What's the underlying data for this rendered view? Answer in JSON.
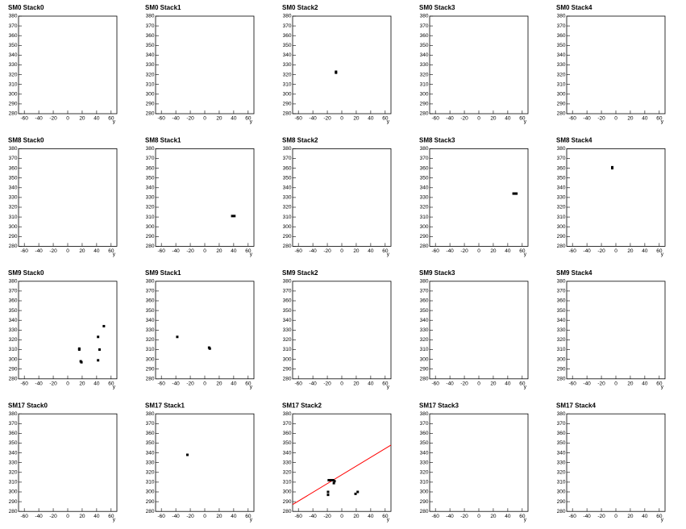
{
  "chart_data": [
    {
      "type": "scatter",
      "title": "SM0 Stack0",
      "xlabel": "y",
      "x": [],
      "y": [],
      "color": "#000000",
      "xlim": [
        -68,
        68
      ],
      "ylim": [
        280,
        380
      ],
      "xticks": [
        -60,
        -40,
        -20,
        0,
        20,
        40,
        60
      ],
      "yticks": [
        280,
        290,
        300,
        310,
        320,
        330,
        340,
        350,
        360,
        370,
        380
      ]
    },
    {
      "type": "scatter",
      "title": "SM0 Stack1",
      "xlabel": "y",
      "x": [],
      "y": [],
      "color": "#000000",
      "xlim": [
        -68,
        68
      ],
      "ylim": [
        280,
        380
      ],
      "xticks": [
        -60,
        -40,
        -20,
        0,
        20,
        40,
        60
      ],
      "yticks": [
        280,
        290,
        300,
        310,
        320,
        330,
        340,
        350,
        360,
        370,
        380
      ]
    },
    {
      "type": "scatter",
      "title": "SM0 Stack2",
      "xlabel": "y",
      "x": [
        -8,
        -8
      ],
      "y": [
        322,
        323
      ],
      "color": "#000000",
      "xlim": [
        -68,
        68
      ],
      "ylim": [
        280,
        380
      ],
      "xticks": [
        -60,
        -40,
        -20,
        0,
        20,
        40,
        60
      ],
      "yticks": [
        280,
        290,
        300,
        310,
        320,
        330,
        340,
        350,
        360,
        370,
        380
      ]
    },
    {
      "type": "scatter",
      "title": "SM0 Stack3",
      "xlabel": "y",
      "x": [],
      "y": [],
      "color": "#000000",
      "xlim": [
        -68,
        68
      ],
      "ylim": [
        280,
        380
      ],
      "xticks": [
        -60,
        -40,
        -20,
        0,
        20,
        40,
        60
      ],
      "yticks": [
        280,
        290,
        300,
        310,
        320,
        330,
        340,
        350,
        360,
        370,
        380
      ]
    },
    {
      "type": "scatter",
      "title": "SM0 Stack4",
      "xlabel": "y",
      "x": [],
      "y": [],
      "color": "#000000",
      "xlim": [
        -68,
        68
      ],
      "ylim": [
        280,
        380
      ],
      "xticks": [
        -60,
        -40,
        -20,
        0,
        20,
        40,
        60
      ],
      "yticks": [
        280,
        290,
        300,
        310,
        320,
        330,
        340,
        350,
        360,
        370,
        380
      ]
    },
    {
      "type": "scatter",
      "title": "SM8 Stack0",
      "xlabel": "y",
      "x": [],
      "y": [],
      "color": "#000000",
      "xlim": [
        -68,
        68
      ],
      "ylim": [
        280,
        380
      ],
      "xticks": [
        -60,
        -40,
        -20,
        0,
        20,
        40,
        60
      ],
      "yticks": [
        280,
        290,
        300,
        310,
        320,
        330,
        340,
        350,
        360,
        370,
        380
      ]
    },
    {
      "type": "scatter",
      "title": "SM8 Stack1",
      "xlabel": "y",
      "x": [
        38,
        41
      ],
      "y": [
        311,
        311
      ],
      "color": "#000000",
      "xlim": [
        -68,
        68
      ],
      "ylim": [
        280,
        380
      ],
      "xticks": [
        -60,
        -40,
        -20,
        0,
        20,
        40,
        60
      ],
      "yticks": [
        280,
        290,
        300,
        310,
        320,
        330,
        340,
        350,
        360,
        370,
        380
      ]
    },
    {
      "type": "scatter",
      "title": "SM8 Stack2",
      "xlabel": "y",
      "x": [],
      "y": [],
      "color": "#000000",
      "xlim": [
        -68,
        68
      ],
      "ylim": [
        280,
        380
      ],
      "xticks": [
        -60,
        -40,
        -20,
        0,
        20,
        40,
        60
      ],
      "yticks": [
        280,
        290,
        300,
        310,
        320,
        330,
        340,
        350,
        360,
        370,
        380
      ]
    },
    {
      "type": "scatter",
      "title": "SM8 Stack3",
      "xlabel": "y",
      "x": [
        48,
        50,
        52
      ],
      "y": [
        334,
        334,
        334
      ],
      "color": "#000000",
      "xlim": [
        -68,
        68
      ],
      "ylim": [
        280,
        380
      ],
      "xticks": [
        -60,
        -40,
        -20,
        0,
        20,
        40,
        60
      ],
      "yticks": [
        280,
        290,
        300,
        310,
        320,
        330,
        340,
        350,
        360,
        370,
        380
      ]
    },
    {
      "type": "scatter",
      "title": "SM8 Stack4",
      "xlabel": "y",
      "x": [
        -5,
        -5
      ],
      "y": [
        360,
        361
      ],
      "color": "#000000",
      "xlim": [
        -68,
        68
      ],
      "ylim": [
        280,
        380
      ],
      "xticks": [
        -60,
        -40,
        -20,
        0,
        20,
        40,
        60
      ],
      "yticks": [
        280,
        290,
        300,
        310,
        320,
        330,
        340,
        350,
        360,
        370,
        380
      ]
    },
    {
      "type": "scatter",
      "title": "SM9 Stack0",
      "xlabel": "y",
      "x": [
        50,
        42,
        16,
        16,
        44,
        42,
        18,
        19
      ],
      "y": [
        334,
        323,
        311,
        310,
        310,
        299,
        298,
        297
      ],
      "color": "#000000",
      "xlim": [
        -68,
        68
      ],
      "ylim": [
        280,
        380
      ],
      "xticks": [
        -60,
        -40,
        -20,
        0,
        20,
        40,
        60
      ],
      "yticks": [
        280,
        290,
        300,
        310,
        320,
        330,
        340,
        350,
        360,
        370,
        380
      ]
    },
    {
      "type": "scatter",
      "title": "SM9 Stack1",
      "xlabel": "y",
      "x": [
        -38,
        6,
        7
      ],
      "y": [
        323,
        312,
        311
      ],
      "color": "#000000",
      "xlim": [
        -68,
        68
      ],
      "ylim": [
        280,
        380
      ],
      "xticks": [
        -60,
        -40,
        -20,
        0,
        20,
        40,
        60
      ],
      "yticks": [
        280,
        290,
        300,
        310,
        320,
        330,
        340,
        350,
        360,
        370,
        380
      ]
    },
    {
      "type": "scatter",
      "title": "SM9 Stack2",
      "xlabel": "y",
      "x": [],
      "y": [],
      "color": "#000000",
      "xlim": [
        -68,
        68
      ],
      "ylim": [
        280,
        380
      ],
      "xticks": [
        -60,
        -40,
        -20,
        0,
        20,
        40,
        60
      ],
      "yticks": [
        280,
        290,
        300,
        310,
        320,
        330,
        340,
        350,
        360,
        370,
        380
      ]
    },
    {
      "type": "scatter",
      "title": "SM9 Stack3",
      "xlabel": "y",
      "x": [],
      "y": [],
      "color": "#000000",
      "xlim": [
        -68,
        68
      ],
      "ylim": [
        280,
        380
      ],
      "xticks": [
        -60,
        -40,
        -20,
        0,
        20,
        40,
        60
      ],
      "yticks": [
        280,
        290,
        300,
        310,
        320,
        330,
        340,
        350,
        360,
        370,
        380
      ]
    },
    {
      "type": "scatter",
      "title": "SM9 Stack4",
      "xlabel": "y",
      "x": [],
      "y": [],
      "color": "#000000",
      "xlim": [
        -68,
        68
      ],
      "ylim": [
        280,
        380
      ],
      "xticks": [
        -60,
        -40,
        -20,
        0,
        20,
        40,
        60
      ],
      "yticks": [
        280,
        290,
        300,
        310,
        320,
        330,
        340,
        350,
        360,
        370,
        380
      ]
    },
    {
      "type": "scatter",
      "title": "SM17 Stack0",
      "xlabel": "y",
      "x": [],
      "y": [],
      "color": "#000000",
      "xlim": [
        -68,
        68
      ],
      "ylim": [
        280,
        380
      ],
      "xticks": [
        -60,
        -40,
        -20,
        0,
        20,
        40,
        60
      ],
      "yticks": [
        280,
        290,
        300,
        310,
        320,
        330,
        340,
        350,
        360,
        370,
        380
      ]
    },
    {
      "type": "scatter",
      "title": "SM17 Stack1",
      "xlabel": "y",
      "x": [
        -24
      ],
      "y": [
        338
      ],
      "color": "#000000",
      "xlim": [
        -68,
        68
      ],
      "ylim": [
        280,
        380
      ],
      "xticks": [
        -60,
        -40,
        -20,
        0,
        20,
        40,
        60
      ],
      "yticks": [
        280,
        290,
        300,
        310,
        320,
        330,
        340,
        350,
        360,
        370,
        380
      ]
    },
    {
      "type": "scatter",
      "title": "SM17 Stack2",
      "xlabel": "y",
      "x": [
        -18,
        -15,
        -12,
        -10,
        -11,
        -19,
        -19,
        19,
        22
      ],
      "y": [
        312,
        312,
        312,
        311,
        309,
        300,
        297,
        298,
        300
      ],
      "color": "#000000",
      "line": {
        "x": [
          -68,
          68
        ],
        "y": [
          287,
          348
        ],
        "color": "#ff0000"
      },
      "xlim": [
        -68,
        68
      ],
      "ylim": [
        280,
        380
      ],
      "xticks": [
        -60,
        -40,
        -20,
        0,
        20,
        40,
        60
      ],
      "yticks": [
        280,
        290,
        300,
        310,
        320,
        330,
        340,
        350,
        360,
        370,
        380
      ]
    },
    {
      "type": "scatter",
      "title": "SM17 Stack3",
      "xlabel": "y",
      "x": [],
      "y": [],
      "color": "#000000",
      "xlim": [
        -68,
        68
      ],
      "ylim": [
        280,
        380
      ],
      "xticks": [
        -60,
        -40,
        -20,
        0,
        20,
        40,
        60
      ],
      "yticks": [
        280,
        290,
        300,
        310,
        320,
        330,
        340,
        350,
        360,
        370,
        380
      ]
    },
    {
      "type": "scatter",
      "title": "SM17 Stack4",
      "xlabel": "y",
      "x": [],
      "y": [],
      "color": "#000000",
      "xlim": [
        -68,
        68
      ],
      "ylim": [
        280,
        380
      ],
      "xticks": [
        -60,
        -40,
        -20,
        0,
        20,
        40,
        60
      ],
      "yticks": [
        280,
        290,
        300,
        310,
        320,
        330,
        340,
        350,
        360,
        370,
        380
      ]
    }
  ]
}
